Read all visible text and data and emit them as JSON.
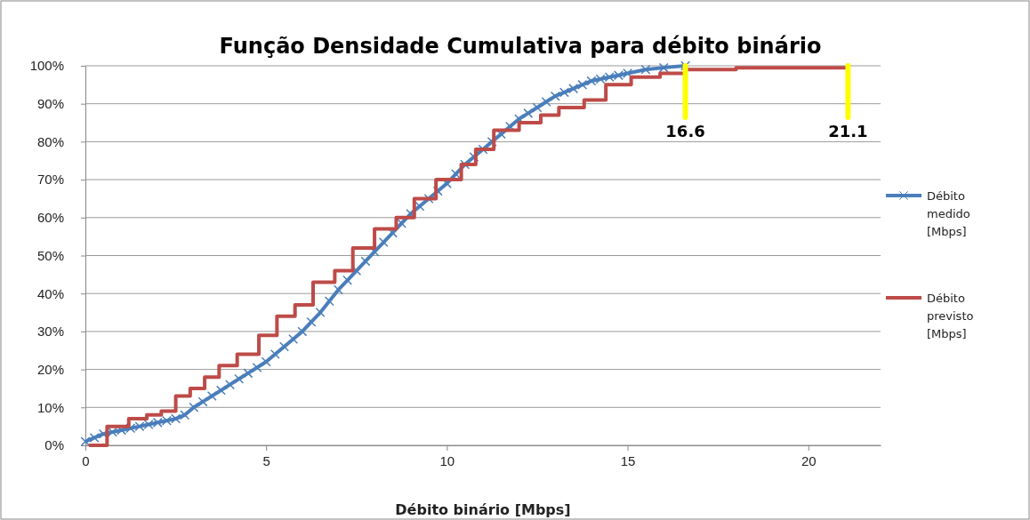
{
  "chart_data": {
    "type": "line",
    "title": "Função Densidade Cumulativa para débito binário",
    "xlabel": "Débito binário  [Mbps]",
    "xlim": [
      0,
      22
    ],
    "xticks": [
      0,
      5,
      10,
      15,
      20
    ],
    "ylim": [
      0,
      100
    ],
    "yticks": [
      {
        "value": 0,
        "label": "0%"
      },
      {
        "value": 10,
        "label": "10%"
      },
      {
        "value": 20,
        "label": "20%"
      },
      {
        "value": 30,
        "label": "30%"
      },
      {
        "value": 40,
        "label": "40%"
      },
      {
        "value": 50,
        "label": "50%"
      },
      {
        "value": 60,
        "label": "60%"
      },
      {
        "value": 70,
        "label": "70%"
      },
      {
        "value": 80,
        "label": "80%"
      },
      {
        "value": 90,
        "label": "90%"
      },
      {
        "value": 100,
        "label": "100%"
      }
    ],
    "grid": "y",
    "legend": "right",
    "series": [
      {
        "name": "Débito medido [Mbps]",
        "color": "#4a7ebb",
        "marker": "cross",
        "x": [
          0,
          0.25,
          0.5,
          0.75,
          1,
          1.25,
          1.5,
          1.75,
          2,
          2.25,
          2.5,
          2.75,
          3,
          3.25,
          3.5,
          3.75,
          4,
          4.25,
          4.5,
          4.75,
          5,
          5.25,
          5.5,
          5.75,
          6,
          6.25,
          6.5,
          6.75,
          7,
          7.25,
          7.5,
          7.75,
          8,
          8.25,
          8.5,
          8.75,
          9,
          9.25,
          9.5,
          9.75,
          10,
          10.25,
          10.5,
          10.75,
          11,
          11.25,
          11.5,
          11.75,
          12,
          12.25,
          12.5,
          12.75,
          13,
          13.25,
          13.5,
          13.75,
          14,
          14.25,
          14.5,
          14.75,
          15,
          15.5,
          16,
          16.6
        ],
        "values": [
          1,
          2,
          3,
          3.5,
          4,
          4.5,
          5,
          5.5,
          6,
          6.5,
          7,
          8,
          10,
          11.5,
          13,
          14.5,
          16,
          17.5,
          19,
          20.5,
          22,
          24,
          26,
          28,
          30,
          32.5,
          35,
          38,
          41,
          43.5,
          46,
          48.5,
          51,
          53.5,
          56,
          58.5,
          61,
          63,
          65,
          67,
          69,
          71.5,
          74,
          76,
          78,
          80,
          82,
          84,
          86,
          87.5,
          89,
          90.5,
          92,
          93,
          94,
          95,
          96,
          96.5,
          97,
          97.5,
          98,
          99,
          99.5,
          100
        ]
      },
      {
        "name": "Débito previsto [Mbps]",
        "type": "step",
        "color": "#be4b48",
        "marker": "none",
        "x": [
          0.1,
          0.6,
          1.2,
          1.7,
          2.1,
          2.5,
          2.9,
          3.3,
          3.7,
          4.2,
          4.8,
          5.3,
          5.8,
          6.3,
          6.9,
          7.4,
          8.0,
          8.6,
          9.1,
          9.7,
          10.4,
          10.8,
          11.3,
          12.0,
          12.6,
          13.1,
          13.8,
          14.4,
          15.1,
          15.9,
          16.6,
          18,
          21.1
        ],
        "values": [
          0,
          5,
          7,
          8,
          9,
          13,
          15,
          18,
          21,
          24,
          29,
          34,
          37,
          43,
          46,
          52,
          57,
          60,
          65,
          70,
          74,
          78,
          83,
          85,
          87,
          89,
          91,
          95,
          97,
          98,
          99,
          99.5,
          100
        ]
      }
    ],
    "annotations": [
      {
        "text": "16.6",
        "x": 16.6,
        "y": 100
      },
      {
        "text": "21.1",
        "x": 21.1,
        "y": 100
      }
    ]
  }
}
